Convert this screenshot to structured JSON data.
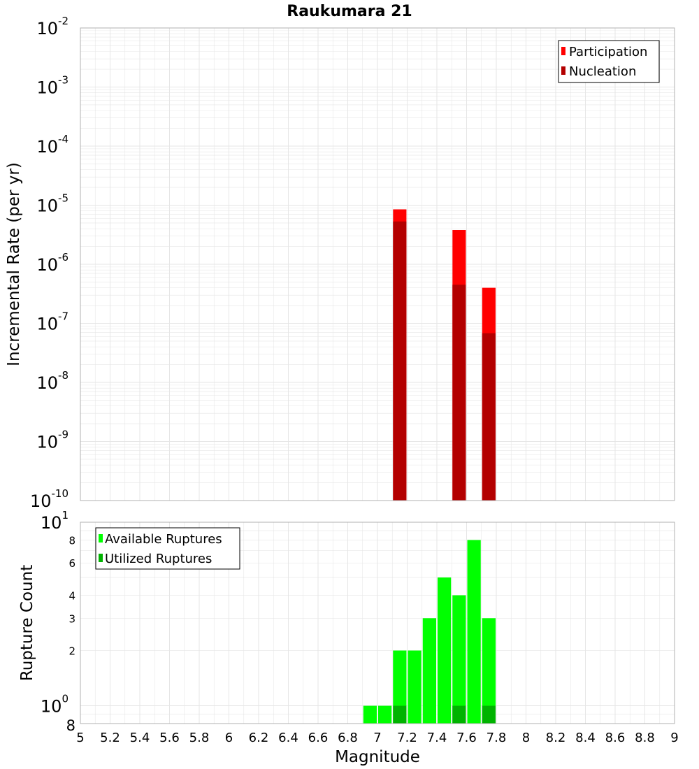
{
  "title": "Raukumara 21",
  "x_axis_label": "Magnitude",
  "colors": {
    "participation": "#ff0000",
    "nucleation": "#b30000",
    "available": "#00ff00",
    "utilized": "#00b300",
    "grid": "#e6e6e6",
    "frame": "#b0b0b0"
  },
  "chart_data": [
    {
      "type": "bar",
      "ylabel": "Incremental Rate (per yr)",
      "yscale": "log",
      "xlim": [
        5,
        9
      ],
      "ylim": [
        1e-10,
        0.01
      ],
      "x_ticks": [
        "5",
        "5.2",
        "5.4",
        "5.6",
        "5.8",
        "6",
        "6.2",
        "6.4",
        "6.6",
        "6.8",
        "7",
        "7.2",
        "7.4",
        "7.6",
        "7.8",
        "8",
        "8.2",
        "8.4",
        "8.6",
        "8.8",
        "9"
      ],
      "y_ticks": [
        {
          "value": 0.01,
          "base": "10",
          "exp": "-2"
        },
        {
          "value": 0.001,
          "base": "10",
          "exp": "-3"
        },
        {
          "value": 0.0001,
          "base": "10",
          "exp": "-4"
        },
        {
          "value": 1e-05,
          "base": "10",
          "exp": "-5"
        },
        {
          "value": 1e-06,
          "base": "10",
          "exp": "-6"
        },
        {
          "value": 1e-07,
          "base": "10",
          "exp": "-7"
        },
        {
          "value": 1e-08,
          "base": "10",
          "exp": "-8"
        },
        {
          "value": 1e-09,
          "base": "10",
          "exp": "-9"
        },
        {
          "value": 1e-10,
          "base": "10",
          "exp": "-10"
        }
      ],
      "legend_position": "top-right",
      "series": [
        {
          "name": "Participation",
          "x": [
            7.15,
            7.55,
            7.75
          ],
          "values": [
            8.5e-06,
            3.8e-06,
            4e-07
          ]
        },
        {
          "name": "Nucleation",
          "x": [
            7.15,
            7.55,
            7.75
          ],
          "values": [
            5.3e-06,
            4.5e-07,
            6.8e-08
          ]
        }
      ],
      "bar_width": 0.09,
      "grid": true
    },
    {
      "type": "bar",
      "ylabel": "Rupture Count",
      "yscale": "log",
      "xlim": [
        5,
        9
      ],
      "ylim": [
        0.8,
        10
      ],
      "x_ticks": [
        "5",
        "5.2",
        "5.4",
        "5.6",
        "5.8",
        "6",
        "6.2",
        "6.4",
        "6.6",
        "6.8",
        "7",
        "7.2",
        "7.4",
        "7.6",
        "7.8",
        "8",
        "8.2",
        "8.4",
        "8.6",
        "8.8",
        "9"
      ],
      "y_ticks": [
        {
          "value": 10,
          "base": "10",
          "exp": "1"
        },
        {
          "value": 1,
          "base": "10",
          "exp": "0"
        }
      ],
      "y_minor_ticks": [
        {
          "value": 8,
          "label": "8"
        },
        {
          "value": 6,
          "label": "6"
        },
        {
          "value": 4,
          "label": "4"
        },
        {
          "value": 3,
          "label": "3"
        },
        {
          "value": 2,
          "label": "2"
        },
        {
          "value": 0.8,
          "label": "8"
        }
      ],
      "legend_position": "top-left",
      "series": [
        {
          "name": "Available Ruptures",
          "x": [
            6.95,
            7.05,
            7.15,
            7.25,
            7.35,
            7.45,
            7.55,
            7.65,
            7.75
          ],
          "values": [
            1,
            1,
            2,
            2,
            3,
            5,
            4,
            8,
            3
          ]
        },
        {
          "name": "Utilized Ruptures",
          "x": [
            7.15,
            7.55,
            7.75
          ],
          "values": [
            1,
            1,
            1
          ]
        }
      ],
      "bar_width": 0.09,
      "grid": true
    }
  ]
}
